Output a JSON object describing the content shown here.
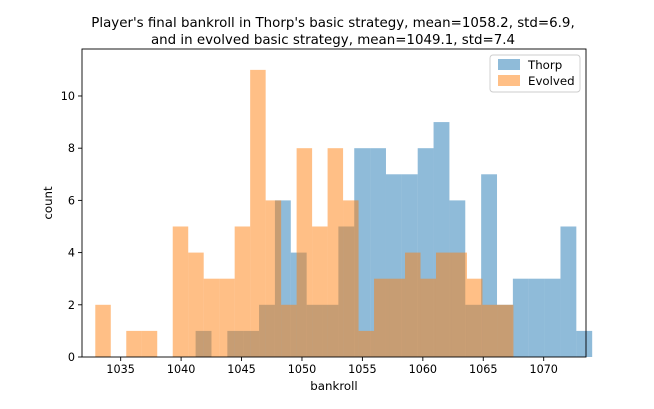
{
  "chart_data": {
    "type": "histogram",
    "title_lines": [
      "Player's final bankroll in Thorp's basic strategy, mean=1058.2, std=6.9,",
      "and in evolved basic strategy, mean=1049.1, std=7.4"
    ],
    "xlabel": "bankroll",
    "ylabel": "count",
    "xlim": [
      1031.8,
      1073.5
    ],
    "ylim": [
      0,
      11.8
    ],
    "x_ticks": [
      1035,
      1040,
      1045,
      1050,
      1055,
      1060,
      1065,
      1070
    ],
    "y_ticks": [
      0,
      2,
      4,
      6,
      8,
      10
    ],
    "grid": false,
    "legend_position": "top-right",
    "series": [
      {
        "name": "Thorp",
        "color": "#1f77b4",
        "alpha": 0.5,
        "bin_start": 1041.2,
        "bin_width": 1.3125,
        "counts": [
          1,
          0,
          1,
          1,
          2,
          6,
          4,
          2,
          2,
          5,
          8,
          8,
          7,
          7,
          8,
          9,
          6,
          2,
          7,
          2,
          3,
          3,
          3,
          5,
          1
        ]
      },
      {
        "name": "Evolved",
        "color": "#ff7f0e",
        "alpha": 0.5,
        "bin_start": 1032.9,
        "bin_width": 1.2813,
        "counts": [
          2,
          0,
          1,
          1,
          0,
          5,
          4,
          3,
          3,
          5,
          11,
          6,
          2,
          8,
          5,
          8,
          6,
          1,
          3,
          3,
          4,
          3,
          4,
          4,
          3,
          2,
          2
        ]
      }
    ]
  }
}
